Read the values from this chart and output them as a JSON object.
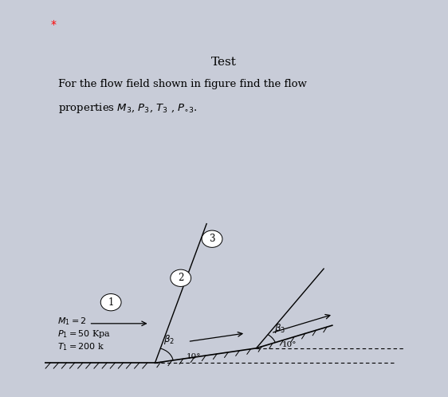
{
  "title": "Test",
  "problem_text_line1": "For the flow field shown in figure find the flow",
  "problem_text_line2": "properties $M_3$, $P_3$, $T_3$ , $P_{\\circ3}$.",
  "star_label": "*",
  "bg_color": "#ffffff",
  "page_bg": "#c8ccd8",
  "fig_width": 5.62,
  "fig_height": 4.98,
  "conditions": [
    "$M_1=2$",
    "$P_1=50$ Kpa",
    "$T_1=200$ k"
  ],
  "angle_10_label": "10°",
  "beta2_label": "$\\beta_2$",
  "beta3_label": "$\\beta_3$",
  "region1_label": "1",
  "region2_label": "2",
  "region3_label": "3"
}
